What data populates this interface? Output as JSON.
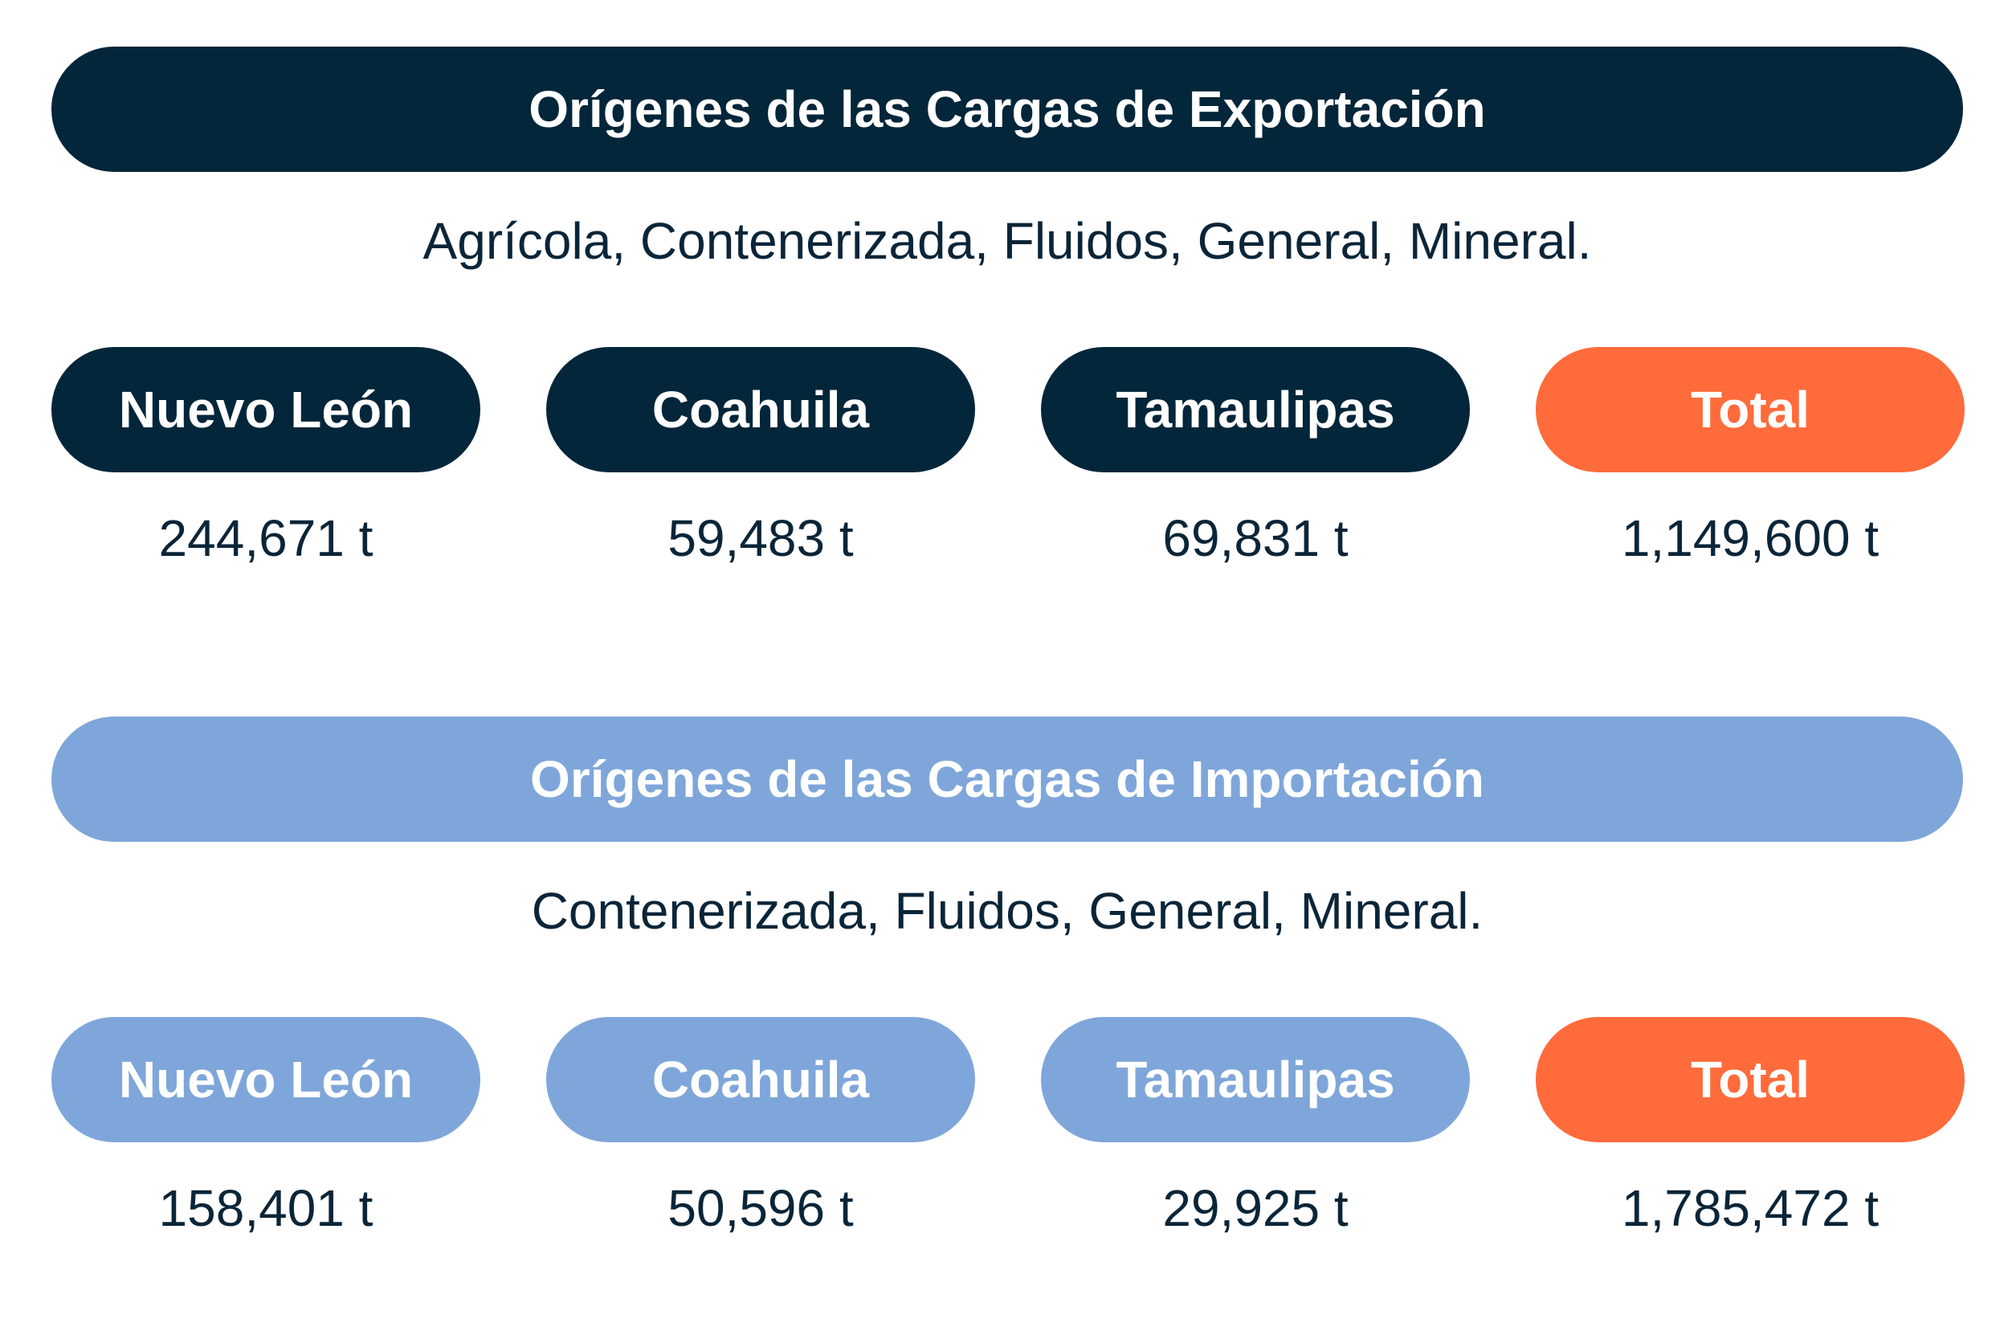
{
  "colors": {
    "export_navy": "#04263a",
    "import_blue": "#7fa6da",
    "total_orange": "#ff6b3b",
    "text_dark": "#0b2538"
  },
  "export": {
    "title": "Orígenes de las Cargas de Exportación",
    "subtitle": "Agrícola, Contenerizada, Fluidos, General, Mineral.",
    "states": [
      {
        "label": "Nuevo León",
        "value": "244,671 t"
      },
      {
        "label": "Coahuila",
        "value": "59,483 t"
      },
      {
        "label": "Tamaulipas",
        "value": "69,831 t"
      },
      {
        "label": "Total",
        "value": "1,149,600 t"
      }
    ]
  },
  "import": {
    "title": "Orígenes de las Cargas de Importación",
    "subtitle": "Contenerizada, Fluidos, General, Mineral.",
    "states": [
      {
        "label": "Nuevo León",
        "value": "158,401 t"
      },
      {
        "label": "Coahuila",
        "value": "50,596 t"
      },
      {
        "label": "Tamaulipas",
        "value": "29,925 t"
      },
      {
        "label": "Total",
        "value": "1,785,472 t"
      }
    ]
  }
}
